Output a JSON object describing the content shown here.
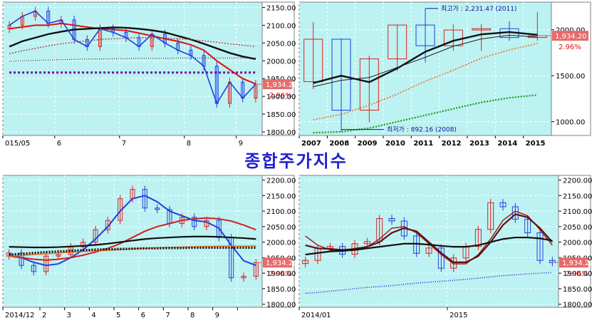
{
  "title": "종합주가지수",
  "colors": {
    "plot_bg": "#bdf2f2",
    "up": "#e02020",
    "down": "#2040e0",
    "price_box": "#e86a6a",
    "pct": "#e01010"
  },
  "charts": [
    {
      "id": "top-left",
      "x_tick_labels": [
        "015/05",
        "6",
        "7",
        "8",
        "9"
      ],
      "y_tick_labels": [
        "2150.00",
        "2100.00",
        "2050.00",
        "2000.00",
        "1950.00",
        "1900.00",
        "1850.00",
        "1800.00"
      ],
      "price_label": "1,934.20",
      "change_label": "2.96%"
    },
    {
      "id": "top-right",
      "x_tick_labels": [
        "2007",
        "2008",
        "2009",
        "2010",
        "2011",
        "2012",
        "2013",
        "2014",
        "2015"
      ],
      "y_tick_labels": [
        "2000.00",
        "1500.00",
        "1000.00"
      ],
      "price_label": "1,934.20",
      "change_label": "2.96%",
      "annotation_high": "최고가 : 2,231.47 (2011)",
      "annotation_low": "최저가 : 892.16 (2008)"
    },
    {
      "id": "bottom-left",
      "x_tick_labels": [
        "2014/12",
        "2",
        "3",
        "4",
        "5",
        "6",
        "7",
        "8",
        "9"
      ],
      "y_tick_labels": [
        "2200.00",
        "2150.00",
        "2100.00",
        "2050.00",
        "2000.00",
        "1950.00",
        "1900.00",
        "1850.00",
        "1800.00"
      ],
      "price_label": "1,934.20",
      "change_label": "2.96%"
    },
    {
      "id": "bottom-right",
      "x_tick_labels": [
        "2014/01",
        "2015"
      ],
      "y_tick_labels": [
        "2200.00",
        "2150.00",
        "2100.00",
        "2050.00",
        "2000.00",
        "1950.00",
        "1900.00",
        "1850.00",
        "1800.00"
      ],
      "price_label": "1,934.20",
      "change_label": "2.96%"
    }
  ],
  "chart_data": [
    {
      "type": "candlestick",
      "period": "daily",
      "x": [
        "2015-05-01",
        "2015-05-08",
        "2015-05-15",
        "2015-05-22",
        "2015-05-29",
        "2015-06-05",
        "2015-06-12",
        "2015-06-19",
        "2015-06-26",
        "2015-07-03",
        "2015-07-10",
        "2015-07-17",
        "2015-07-24",
        "2015-07-31",
        "2015-08-07",
        "2015-08-14",
        "2015-08-21",
        "2015-08-28",
        "2015-09-04",
        "2015-09-11"
      ],
      "close": [
        2100,
        2125,
        2140,
        2105,
        2115,
        2060,
        2040,
        2090,
        2080,
        2065,
        2040,
        2075,
        2050,
        2030,
        2015,
        1985,
        1880,
        1940,
        1895,
        1934.2
      ],
      "ylim": [
        1790,
        2165
      ],
      "moving_averages": [
        {
          "values": [
            2090,
            2095,
            2100,
            2100,
            2105,
            2100,
            2095,
            2090,
            2088,
            2085,
            2078,
            2070,
            2062,
            2055,
            2045,
            2030,
            2000,
            1975,
            1950,
            1935
          ]
        },
        {
          "values": [
            2040,
            2055,
            2065,
            2075,
            2082,
            2088,
            2090,
            2092,
            2094,
            2093,
            2090,
            2086,
            2080,
            2070,
            2060,
            2048,
            2035,
            2022,
            2012,
            2005
          ]
        },
        {
          "values": [
            2020,
            2028,
            2035,
            2042,
            2048,
            2052,
            2056,
            2060,
            2062,
            2064,
            2065,
            2065,
            2064,
            2062,
            2060,
            2056,
            2052,
            2048,
            2044,
            2040
          ]
        },
        {
          "values": [
            1999,
            2000,
            2001,
            2002,
            2003,
            2004,
            2005,
            2005,
            2006,
            2006,
            2007,
            2007,
            2007,
            2008,
            2008,
            2008,
            2008,
            2008,
            2008,
            2008
          ]
        },
        {
          "values": [
            1967,
            1967,
            1967,
            1967,
            1967,
            1967,
            1967,
            1967,
            1967,
            1967,
            1967,
            1967,
            1967,
            1967,
            1967,
            1967,
            1967,
            1967,
            1967,
            1967
          ]
        }
      ]
    },
    {
      "type": "candlestick",
      "period": "yearly",
      "x": [
        "2007",
        "2008",
        "2009",
        "2010",
        "2011",
        "2012",
        "2013",
        "2014",
        "2015"
      ],
      "open": [
        1435,
        1897,
        1125,
        1683,
        2051,
        1826,
        1997,
        2011,
        1915
      ],
      "close": [
        1897,
        1125,
        1683,
        2051,
        1826,
        1997,
        2011,
        1915,
        1934.2
      ],
      "high": [
        2085,
        1902,
        1719,
        2052,
        2231.47,
        2057,
        2063,
        2093,
        2190
      ],
      "low": [
        1354,
        892.16,
        993,
        1552,
        1644,
        1770,
        1770,
        1880,
        1880
      ],
      "ylim": [
        850,
        2300
      ],
      "moving_averages": [
        {
          "values": [
            1420,
            1500,
            1430,
            1580,
            1760,
            1880,
            1950,
            1975,
            1945
          ]
        },
        {
          "values": [
            1380,
            1450,
            1480,
            1590,
            1700,
            1820,
            1900,
            1940,
            1920
          ]
        },
        {
          "values": [
            1020,
            1080,
            1180,
            1300,
            1440,
            1560,
            1690,
            1780,
            1850
          ]
        },
        {
          "values": [
            880,
            890,
            930,
            1000,
            1070,
            1140,
            1210,
            1260,
            1290
          ]
        }
      ]
    },
    {
      "type": "candlestick",
      "period": "weekly",
      "x": [
        "2014-12-01",
        "2014-12-15",
        "2015-01-05",
        "2015-01-19",
        "2015-02-02",
        "2015-02-16",
        "2015-03-02",
        "2015-03-16",
        "2015-03-30",
        "2015-04-13",
        "2015-04-27",
        "2015-05-11",
        "2015-05-25",
        "2015-06-08",
        "2015-06-22",
        "2015-07-06",
        "2015-07-20",
        "2015-08-03",
        "2015-08-17",
        "2015-08-31",
        "2015-09-11"
      ],
      "close": [
        1965,
        1925,
        1905,
        1955,
        1960,
        1985,
        2000,
        2040,
        2070,
        2140,
        2170,
        2110,
        2105,
        2060,
        2080,
        2050,
        2070,
        2015,
        1885,
        1890,
        1934.2
      ],
      "ylim": [
        1790,
        2215
      ],
      "moving_averages": [
        {
          "values": [
            1960,
            1950,
            1935,
            1925,
            1930,
            1950,
            1975,
            2010,
            2050,
            2100,
            2140,
            2150,
            2130,
            2100,
            2085,
            2070,
            2065,
            2045,
            1990,
            1940,
            1925
          ]
        },
        {
          "values": [
            1955,
            1950,
            1945,
            1942,
            1945,
            1950,
            1958,
            1968,
            1980,
            1995,
            2015,
            2035,
            2050,
            2060,
            2070,
            2075,
            2078,
            2075,
            2068,
            2055,
            2040
          ]
        },
        {
          "values": [
            1985,
            1984,
            1983,
            1983,
            1984,
            1986,
            1988,
            1991,
            1995,
            2000,
            2005,
            2010,
            2013,
            2015,
            2017,
            2018,
            2018,
            2017,
            2015,
            2013,
            2010
          ]
        },
        {
          "values": [
            1955,
            1957,
            1960,
            1962,
            1965,
            1968,
            1970,
            1972,
            1974,
            1976,
            1978,
            1980,
            1982,
            1983,
            1984,
            1985,
            1986,
            1987,
            1987,
            1987,
            1988
          ]
        },
        {
          "values": [
            1960,
            1962,
            1965,
            1968,
            1970,
            1972,
            1974,
            1976,
            1977,
            1978,
            1979,
            1980,
            1980,
            1981,
            1981,
            1982,
            1982,
            1982,
            1982,
            1982,
            1982
          ]
        }
      ]
    },
    {
      "type": "candlestick",
      "period": "monthly",
      "x": [
        "2014-01",
        "2014-02",
        "2014-03",
        "2014-04",
        "2014-05",
        "2014-06",
        "2014-07",
        "2014-08",
        "2014-09",
        "2014-10",
        "2014-11",
        "2014-12",
        "2015-01",
        "2015-02",
        "2015-03",
        "2015-04",
        "2015-05",
        "2015-06",
        "2015-07",
        "2015-08",
        "2015-09"
      ],
      "close": [
        1941,
        1980,
        1986,
        1961,
        1995,
        2002,
        2076,
        2068,
        2020,
        1964,
        1981,
        1916,
        1949,
        1986,
        2041,
        2127,
        2114,
        2074,
        2030,
        1941,
        1934.2
      ],
      "ylim": [
        1790,
        2215
      ],
      "moving_averages": [
        {
          "values": [
            2020,
            1990,
            1975,
            1970,
            1980,
            1985,
            2010,
            2045,
            2050,
            2030,
            1995,
            1960,
            1930,
            1930,
            1960,
            2010,
            2070,
            2100,
            2085,
            2040,
            1990
          ]
        },
        {
          "values": [
            1990,
            1980,
            1978,
            1975,
            1978,
            1985,
            2000,
            2030,
            2045,
            2035,
            2000,
            1965,
            1935,
            1935,
            1955,
            2000,
            2055,
            2090,
            2080,
            2045,
            2000
          ]
        },
        {
          "values": [
            1960,
            1965,
            1970,
            1972,
            1975,
            1980,
            1985,
            1990,
            1995,
            1995,
            1992,
            1988,
            1985,
            1985,
            1990,
            2000,
            2010,
            2015,
            2015,
            2012,
            2005
          ]
        },
        {
          "values": [
            1835,
            1838,
            1842,
            1846,
            1850,
            1854,
            1857,
            1860,
            1864,
            1868,
            1871,
            1874,
            1877,
            1880,
            1884,
            1888,
            1892,
            1895,
            1898,
            1900,
            1902
          ]
        }
      ]
    }
  ]
}
